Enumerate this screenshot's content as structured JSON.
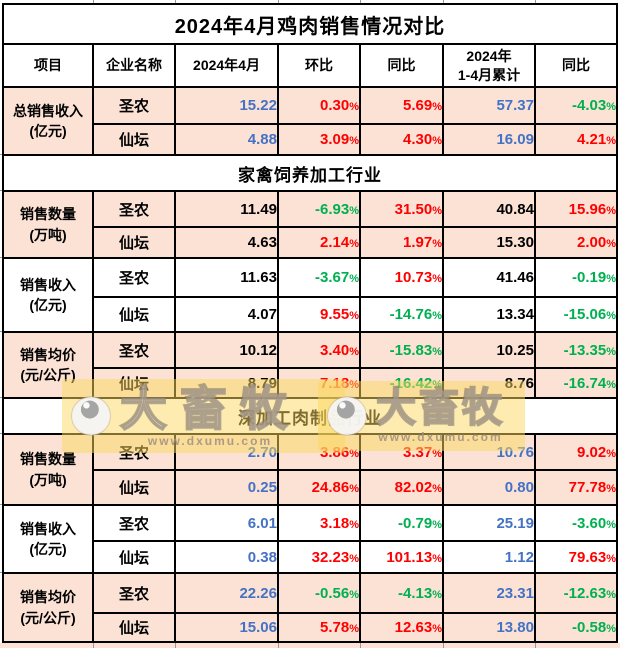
{
  "title": "2024年4月鸡肉销售情况对比",
  "watermark": {
    "brand": "大畜牧",
    "url": "www.dxumu.com"
  },
  "colors": {
    "title_blue": "#4472C4",
    "number_blue": "#4472C4",
    "number_black": "#000000",
    "positive_red": "#FF0000",
    "negative_green": "#00B050",
    "row_peach": "#FBE2D5",
    "border": "#000000",
    "watermark_yellow": "rgba(252,216,96,0.5)"
  },
  "chart_data": {
    "type": "table",
    "title": "2024年4月鸡肉销售情况对比",
    "columns": [
      "项目",
      "企业名称",
      "2024年4月",
      "环比",
      "同比",
      "2024年\n1-4月累计",
      "同比"
    ],
    "companies": [
      "圣农",
      "仙坛"
    ],
    "sections": [
      {
        "header": "",
        "groups": [
          {
            "metric": "总销售收入",
            "unit": "(亿元)",
            "shaded": true,
            "value_color": "#4472C4",
            "rows": [
              {
                "company": "圣农",
                "values": [
                  "15.22",
                  "0.30%",
                  "5.69%",
                  "57.37",
                  "-4.03%"
                ]
              },
              {
                "company": "仙坛",
                "values": [
                  "4.88",
                  "3.09%",
                  "4.30%",
                  "16.09",
                  "4.21%"
                ]
              }
            ]
          }
        ]
      },
      {
        "header": "家禽饲养加工行业",
        "groups": [
          {
            "metric": "销售数量",
            "unit": "(万吨)",
            "shaded": true,
            "value_color": "#000000",
            "rows": [
              {
                "company": "圣农",
                "values": [
                  "11.49",
                  "-6.93%",
                  "31.50%",
                  "40.84",
                  "15.96%"
                ]
              },
              {
                "company": "仙坛",
                "values": [
                  "4.63",
                  "2.14%",
                  "1.97%",
                  "15.30",
                  "2.00%"
                ]
              }
            ]
          },
          {
            "metric": "销售收入",
            "unit": "(亿元)",
            "shaded": false,
            "value_color": "#000000",
            "rows": [
              {
                "company": "圣农",
                "values": [
                  "11.63",
                  "-3.67%",
                  "10.73%",
                  "41.46",
                  "-0.19%"
                ]
              },
              {
                "company": "仙坛",
                "values": [
                  "4.07",
                  "9.55%",
                  "-14.76%",
                  "13.34",
                  "-15.06%"
                ]
              }
            ]
          },
          {
            "metric": "销售均价",
            "unit": "(元/公斤)",
            "shaded": true,
            "value_color": "#000000",
            "rows": [
              {
                "company": "圣农",
                "values": [
                  "10.12",
                  "3.40%",
                  "-15.83%",
                  "10.25",
                  "-13.35%"
                ]
              },
              {
                "company": "仙坛",
                "values": [
                  "8.79",
                  "7.18%",
                  "-16.42%",
                  "8.76",
                  "-16.74%"
                ]
              }
            ]
          }
        ]
      },
      {
        "header": "深加工肉制品行业",
        "groups": [
          {
            "metric": "销售数量",
            "unit": "(万吨)",
            "shaded": true,
            "value_color": "#4472C4",
            "rows": [
              {
                "company": "圣农",
                "values": [
                  "2.70",
                  "3.86%",
                  "3.37%",
                  "10.76",
                  "9.02%"
                ]
              },
              {
                "company": "仙坛",
                "values": [
                  "0.25",
                  "24.86%",
                  "82.02%",
                  "0.80",
                  "77.78%"
                ]
              }
            ]
          },
          {
            "metric": "销售收入",
            "unit": "(亿元)",
            "shaded": false,
            "value_color": "#4472C4",
            "rows": [
              {
                "company": "圣农",
                "values": [
                  "6.01",
                  "3.18%",
                  "-0.79%",
                  "25.19",
                  "-3.60%"
                ]
              },
              {
                "company": "仙坛",
                "values": [
                  "0.38",
                  "32.23%",
                  "101.13%",
                  "1.12",
                  "79.63%"
                ]
              }
            ]
          },
          {
            "metric": "销售均价",
            "unit": "(元/公斤)",
            "shaded": true,
            "value_color": "#4472C4",
            "rows": [
              {
                "company": "圣农",
                "values": [
                  "22.26",
                  "-0.56%",
                  "-4.13%",
                  "23.31",
                  "-12.63%"
                ]
              },
              {
                "company": "仙坛",
                "values": [
                  "15.06",
                  "5.78%",
                  "12.63%",
                  "13.80",
                  "-0.58%"
                ]
              }
            ]
          }
        ]
      }
    ]
  }
}
